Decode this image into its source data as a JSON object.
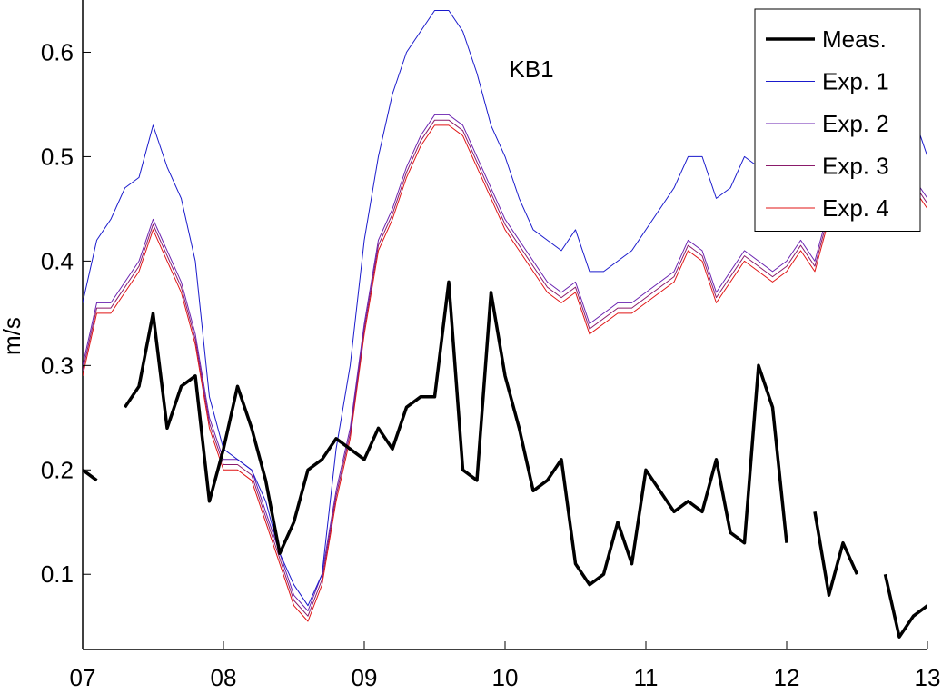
{
  "chart_data": {
    "type": "line",
    "annotation": "KB1",
    "y_label": "m/s",
    "xlim": [
      7,
      13
    ],
    "ylim": [
      0.028,
      0.65
    ],
    "xticks": [
      {
        "value": 7,
        "label": "07"
      },
      {
        "value": 8,
        "label": "08"
      },
      {
        "value": 9,
        "label": "09"
      },
      {
        "value": 10,
        "label": "10"
      },
      {
        "value": 11,
        "label": "11"
      },
      {
        "value": 12,
        "label": "12"
      },
      {
        "value": 13,
        "label": "13"
      }
    ],
    "yticks": [
      0.1,
      0.2,
      0.3,
      0.4,
      0.5,
      0.6
    ],
    "legend": "top-right",
    "x": [
      7,
      7.1,
      7.2,
      7.3,
      7.4,
      7.5,
      7.6,
      7.7,
      7.8,
      7.9,
      8,
      8.1,
      8.2,
      8.3,
      8.4,
      8.5,
      8.6,
      8.7,
      8.8,
      8.9,
      9,
      9.1,
      9.2,
      9.3,
      9.4,
      9.5,
      9.6,
      9.7,
      9.8,
      9.9,
      10,
      10.1,
      10.2,
      10.3,
      10.4,
      10.5,
      10.6,
      10.7,
      10.8,
      10.9,
      11,
      11.1,
      11.2,
      11.3,
      11.4,
      11.5,
      11.6,
      11.7,
      11.8,
      11.9,
      12,
      12.1,
      12.2,
      12.3,
      12.4,
      12.5,
      12.6,
      12.7,
      12.8,
      12.9,
      13
    ],
    "series": [
      {
        "name": "Meas.",
        "color": "#000000",
        "width": 3.5,
        "values": [
          0.2,
          0.19,
          null,
          0.26,
          0.28,
          0.35,
          0.24,
          0.28,
          0.29,
          0.17,
          0.22,
          0.28,
          0.24,
          0.19,
          0.12,
          0.15,
          0.2,
          0.21,
          0.23,
          0.22,
          0.21,
          0.24,
          0.22,
          0.26,
          0.27,
          0.27,
          0.38,
          0.2,
          0.19,
          0.37,
          0.29,
          0.24,
          0.18,
          0.19,
          0.21,
          0.11,
          0.09,
          0.1,
          0.15,
          0.11,
          0.2,
          0.18,
          0.16,
          0.17,
          0.16,
          0.21,
          0.14,
          0.13,
          0.3,
          0.26,
          0.13,
          null,
          0.16,
          0.08,
          0.13,
          0.1,
          null,
          0.1,
          0.04,
          0.06,
          0.07
        ]
      },
      {
        "name": "Exp. 1",
        "color": "#1a1acc",
        "width": 1,
        "values": [
          0.36,
          0.42,
          0.44,
          0.47,
          0.48,
          0.53,
          0.49,
          0.46,
          0.4,
          0.27,
          0.22,
          0.21,
          0.2,
          0.17,
          0.12,
          0.09,
          0.07,
          0.1,
          0.22,
          0.3,
          0.42,
          0.5,
          0.56,
          0.6,
          0.62,
          0.64,
          0.64,
          0.62,
          0.58,
          0.53,
          0.5,
          0.46,
          0.43,
          0.42,
          0.41,
          0.43,
          0.39,
          0.39,
          0.4,
          0.41,
          0.43,
          0.45,
          0.47,
          0.5,
          0.5,
          0.46,
          0.47,
          0.5,
          0.49,
          0.48,
          0.49,
          0.52,
          0.55,
          0.6,
          0.63,
          0.64,
          0.64,
          0.62,
          0.58,
          0.54,
          0.5
        ]
      },
      {
        "name": "Exp. 2",
        "color": "#6a22b0",
        "width": 1,
        "values": [
          0.3,
          0.36,
          0.36,
          0.38,
          0.4,
          0.44,
          0.41,
          0.38,
          0.33,
          0.25,
          0.21,
          0.21,
          0.2,
          0.16,
          0.12,
          0.08,
          0.065,
          0.1,
          0.18,
          0.24,
          0.34,
          0.42,
          0.45,
          0.49,
          0.52,
          0.54,
          0.54,
          0.53,
          0.5,
          0.47,
          0.44,
          0.42,
          0.4,
          0.38,
          0.37,
          0.38,
          0.34,
          0.35,
          0.36,
          0.36,
          0.37,
          0.38,
          0.39,
          0.42,
          0.41,
          0.37,
          0.39,
          0.41,
          0.4,
          0.39,
          0.4,
          0.42,
          0.4,
          0.45,
          0.5,
          0.52,
          0.53,
          0.52,
          0.5,
          0.48,
          0.46
        ]
      },
      {
        "name": "Exp. 3",
        "color": "#8a1a6a",
        "width": 1,
        "values": [
          0.295,
          0.355,
          0.355,
          0.375,
          0.395,
          0.435,
          0.405,
          0.375,
          0.325,
          0.245,
          0.205,
          0.205,
          0.195,
          0.155,
          0.115,
          0.075,
          0.06,
          0.095,
          0.175,
          0.235,
          0.335,
          0.415,
          0.445,
          0.485,
          0.515,
          0.535,
          0.535,
          0.525,
          0.495,
          0.465,
          0.435,
          0.415,
          0.395,
          0.375,
          0.365,
          0.375,
          0.335,
          0.345,
          0.355,
          0.355,
          0.365,
          0.375,
          0.385,
          0.415,
          0.405,
          0.365,
          0.385,
          0.405,
          0.395,
          0.385,
          0.395,
          0.415,
          0.395,
          0.445,
          0.495,
          0.515,
          0.525,
          0.515,
          0.495,
          0.475,
          0.455
        ]
      },
      {
        "name": "Exp. 4",
        "color": "#e01414",
        "width": 1,
        "values": [
          0.29,
          0.35,
          0.35,
          0.37,
          0.39,
          0.43,
          0.4,
          0.37,
          0.32,
          0.24,
          0.2,
          0.2,
          0.19,
          0.15,
          0.11,
          0.07,
          0.055,
          0.09,
          0.17,
          0.23,
          0.33,
          0.41,
          0.44,
          0.48,
          0.51,
          0.53,
          0.53,
          0.52,
          0.49,
          0.46,
          0.43,
          0.41,
          0.39,
          0.37,
          0.36,
          0.37,
          0.33,
          0.34,
          0.35,
          0.35,
          0.36,
          0.37,
          0.38,
          0.41,
          0.4,
          0.36,
          0.38,
          0.4,
          0.39,
          0.38,
          0.39,
          0.41,
          0.39,
          0.44,
          0.49,
          0.51,
          0.52,
          0.51,
          0.49,
          0.47,
          0.45
        ]
      }
    ]
  }
}
